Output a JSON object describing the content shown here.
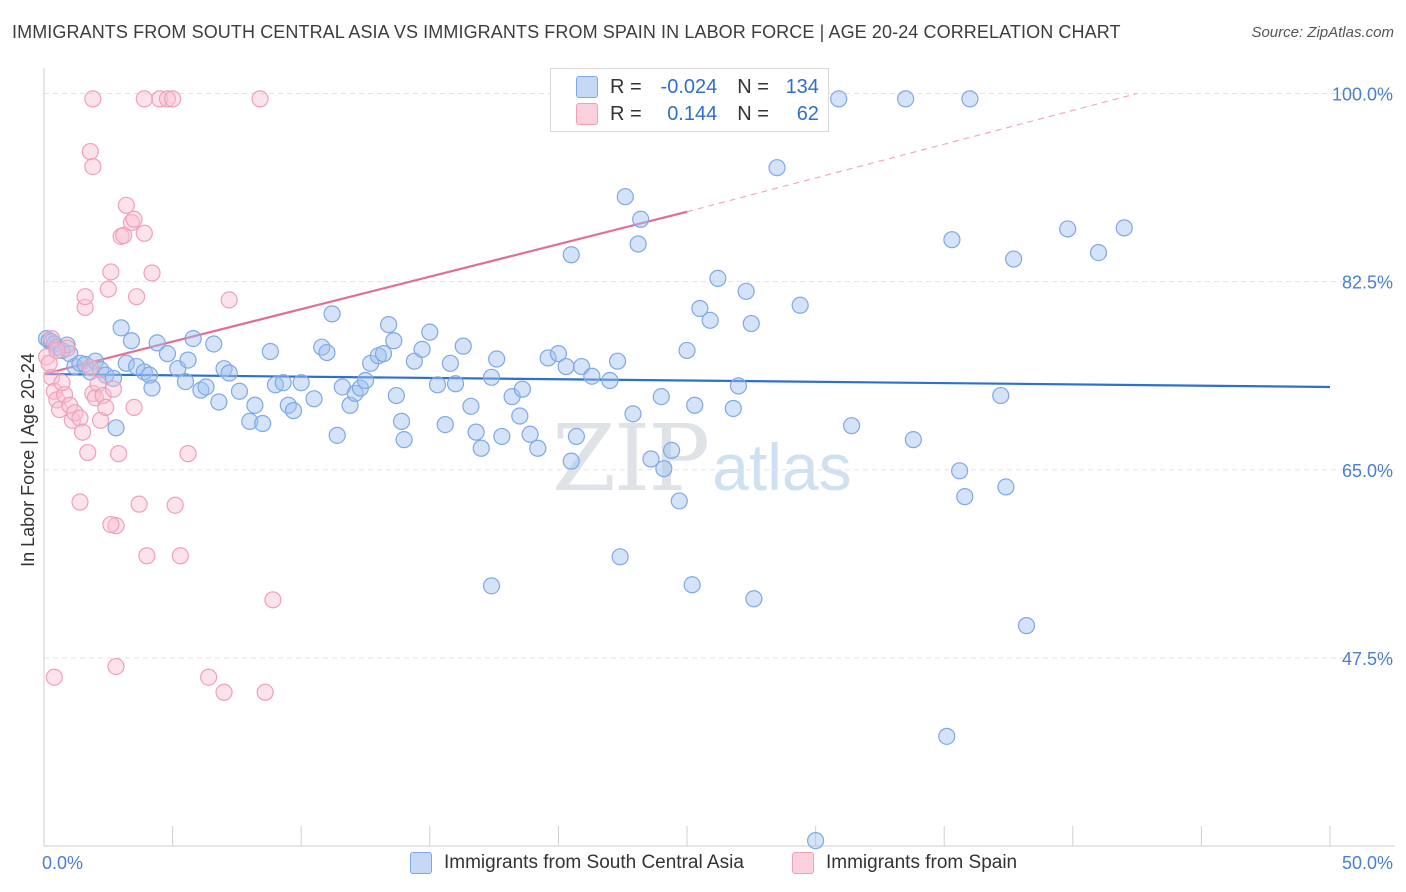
{
  "title": "IMMIGRANTS FROM SOUTH CENTRAL ASIA VS IMMIGRANTS FROM SPAIN IN LABOR FORCE | AGE 20-24 CORRELATION CHART",
  "source": "Source: ZipAtlas.com",
  "watermark": {
    "zip": "ZIP",
    "atlas": "atlas"
  },
  "legend": {
    "rows": [
      {
        "r_label": "R =",
        "r_value": "-0.024",
        "n_label": "N =",
        "n_value": "134"
      },
      {
        "r_label": "R =",
        "r_value": "0.144",
        "n_label": "N =",
        "n_value": "62"
      }
    ]
  },
  "bottom_legend": {
    "blue": "Immigrants from South Central Asia",
    "pink": "Immigrants from Spain"
  },
  "chart_data": {
    "type": "scatter",
    "title": "IMMIGRANTS FROM SOUTH CENTRAL ASIA VS IMMIGRANTS FROM SPAIN IN LABOR FORCE | AGE 20-24 CORRELATION CHART",
    "xlabel": "",
    "ylabel": "In Labor Force | Age 20-24",
    "xlim": [
      0,
      50
    ],
    "ylim": [
      30,
      102
    ],
    "x_tick_labels": [
      "0.0%",
      "50.0%"
    ],
    "y_ticks": [
      47.5,
      65.0,
      82.5,
      100.0
    ],
    "y_tick_labels": [
      "47.5%",
      "65.0%",
      "82.5%",
      "100.0%"
    ],
    "grid": true,
    "legend_position": "top-center",
    "colors": {
      "blue": "#7fa8e6",
      "blue_line": "#2e6fcf",
      "pink": "#f0a0b8",
      "pink_line": "#e0709a"
    },
    "series": [
      {
        "name": "Immigrants from South Central Asia",
        "color": "blue",
        "trend": {
          "x0": 0,
          "y0": 73.9,
          "x1": 50,
          "y1": 72.7
        },
        "points": [
          [
            0.1,
            77.2
          ],
          [
            0.2,
            77.0
          ],
          [
            0.3,
            76.9
          ],
          [
            0.4,
            76.7
          ],
          [
            0.5,
            76.4
          ],
          [
            0.7,
            76.1
          ],
          [
            0.9,
            76.6
          ],
          [
            1.0,
            75.8
          ],
          [
            1.2,
            74.6
          ],
          [
            1.4,
            74.9
          ],
          [
            1.6,
            74.8
          ],
          [
            1.8,
            74.1
          ],
          [
            2.0,
            75.1
          ],
          [
            2.2,
            74.3
          ],
          [
            2.4,
            73.8
          ],
          [
            2.7,
            73.5
          ],
          [
            2.8,
            68.9
          ],
          [
            3.0,
            78.2
          ],
          [
            3.2,
            74.9
          ],
          [
            3.4,
            77.0
          ],
          [
            3.6,
            74.6
          ],
          [
            3.9,
            74.1
          ],
          [
            4.1,
            73.8
          ],
          [
            4.4,
            76.8
          ],
          [
            4.2,
            72.6
          ],
          [
            4.8,
            75.8
          ],
          [
            5.2,
            74.4
          ],
          [
            5.5,
            73.2
          ],
          [
            5.6,
            75.2
          ],
          [
            5.8,
            77.2
          ],
          [
            6.1,
            72.4
          ],
          [
            6.3,
            72.7
          ],
          [
            6.6,
            76.7
          ],
          [
            6.8,
            71.3
          ],
          [
            7.0,
            74.4
          ],
          [
            7.2,
            74.0
          ],
          [
            7.6,
            72.3
          ],
          [
            8.0,
            69.5
          ],
          [
            8.2,
            71.0
          ],
          [
            8.5,
            69.3
          ],
          [
            8.8,
            76.0
          ],
          [
            9.0,
            72.9
          ],
          [
            9.3,
            73.1
          ],
          [
            9.5,
            71.0
          ],
          [
            9.7,
            70.5
          ],
          [
            10.0,
            73.1
          ],
          [
            10.5,
            71.6
          ],
          [
            10.8,
            76.4
          ],
          [
            11.0,
            75.9
          ],
          [
            11.2,
            79.5
          ],
          [
            11.4,
            68.2
          ],
          [
            11.6,
            72.7
          ],
          [
            11.9,
            71.0
          ],
          [
            12.1,
            72.1
          ],
          [
            12.3,
            72.6
          ],
          [
            12.5,
            73.3
          ],
          [
            12.7,
            74.9
          ],
          [
            13.0,
            75.6
          ],
          [
            13.2,
            75.8
          ],
          [
            13.4,
            78.5
          ],
          [
            13.6,
            77.0
          ],
          [
            13.7,
            71.9
          ],
          [
            14.0,
            67.8
          ],
          [
            14.4,
            75.1
          ],
          [
            14.7,
            76.2
          ],
          [
            15.0,
            77.8
          ],
          [
            15.3,
            72.9
          ],
          [
            15.6,
            69.2
          ],
          [
            15.8,
            74.9
          ],
          [
            16.3,
            76.5
          ],
          [
            16.6,
            70.9
          ],
          [
            16.8,
            68.5
          ],
          [
            17.0,
            67.0
          ],
          [
            17.4,
            73.6
          ],
          [
            17.6,
            75.3
          ],
          [
            17.8,
            68.1
          ],
          [
            18.2,
            71.8
          ],
          [
            18.6,
            72.5
          ],
          [
            18.9,
            68.3
          ],
          [
            19.2,
            67.0
          ],
          [
            19.6,
            75.4
          ],
          [
            20.0,
            75.8
          ],
          [
            20.3,
            74.6
          ],
          [
            20.5,
            65.8
          ],
          [
            20.7,
            68.1
          ],
          [
            20.9,
            74.6
          ],
          [
            21.3,
            73.7
          ],
          [
            22.0,
            73.3
          ],
          [
            22.3,
            75.1
          ],
          [
            22.6,
            90.4
          ],
          [
            22.9,
            70.2
          ],
          [
            23.1,
            86.0
          ],
          [
            23.2,
            88.3
          ],
          [
            23.6,
            66.0
          ],
          [
            24.1,
            65.1
          ],
          [
            24.4,
            66.8
          ],
          [
            24.7,
            62.1
          ],
          [
            25.0,
            76.1
          ],
          [
            25.3,
            71.0
          ],
          [
            25.5,
            80.0
          ],
          [
            25.9,
            78.9
          ],
          [
            26.2,
            82.8
          ],
          [
            26.8,
            70.7
          ],
          [
            27.0,
            72.8
          ],
          [
            27.3,
            81.6
          ],
          [
            27.5,
            78.6
          ],
          [
            28.5,
            93.1
          ],
          [
            29.4,
            80.3
          ],
          [
            30.9,
            99.5
          ],
          [
            31.4,
            69.1
          ],
          [
            33.5,
            99.5
          ],
          [
            33.8,
            67.8
          ],
          [
            35.3,
            86.4
          ],
          [
            35.6,
            64.9
          ],
          [
            35.8,
            62.5
          ],
          [
            36.0,
            99.5
          ],
          [
            37.2,
            71.9
          ],
          [
            37.4,
            63.4
          ],
          [
            37.7,
            84.6
          ],
          [
            38.2,
            50.5
          ],
          [
            39.8,
            87.4
          ],
          [
            41.0,
            85.2
          ],
          [
            42.0,
            87.5
          ],
          [
            22.4,
            56.9
          ],
          [
            17.4,
            54.2
          ],
          [
            25.2,
            54.3
          ],
          [
            27.6,
            53.0
          ],
          [
            35.1,
            40.2
          ],
          [
            20.5,
            85.0
          ],
          [
            18.5,
            70.0
          ],
          [
            16.0,
            73.0
          ],
          [
            30.0,
            30.5
          ],
          [
            13.9,
            69.5
          ],
          [
            24.0,
            71.8
          ]
        ]
      },
      {
        "name": "Immigrants from Spain",
        "color": "pink",
        "trend": {
          "x0": 0,
          "y0": 73.9,
          "x1": 25,
          "y1": 89.0,
          "dashed_to": {
            "x": 42.5,
            "y": 100
          }
        },
        "points": [
          [
            0.1,
            75.5
          ],
          [
            0.2,
            74.9
          ],
          [
            0.3,
            73.6
          ],
          [
            0.4,
            72.3
          ],
          [
            0.5,
            71.5
          ],
          [
            0.6,
            70.6
          ],
          [
            0.8,
            72.0
          ],
          [
            0.9,
            76.3
          ],
          [
            0.3,
            77.2
          ],
          [
            0.5,
            76.1
          ],
          [
            0.7,
            73.1
          ],
          [
            1.0,
            71.0
          ],
          [
            1.1,
            69.6
          ],
          [
            1.2,
            70.3
          ],
          [
            1.4,
            69.8
          ],
          [
            1.5,
            68.5
          ],
          [
            1.6,
            80.1
          ],
          [
            1.7,
            66.6
          ],
          [
            1.8,
            74.5
          ],
          [
            1.9,
            72.1
          ],
          [
            2.0,
            71.7
          ],
          [
            2.1,
            73.0
          ],
          [
            2.2,
            69.6
          ],
          [
            2.3,
            71.9
          ],
          [
            2.4,
            70.8
          ],
          [
            2.5,
            81.8
          ],
          [
            2.6,
            83.4
          ],
          [
            2.7,
            72.5
          ],
          [
            2.8,
            59.8
          ],
          [
            2.9,
            66.5
          ],
          [
            3.0,
            86.7
          ],
          [
            3.1,
            86.8
          ],
          [
            3.2,
            89.6
          ],
          [
            3.4,
            88.0
          ],
          [
            3.5,
            88.3
          ],
          [
            3.6,
            81.1
          ],
          [
            3.7,
            61.8
          ],
          [
            3.9,
            87.0
          ],
          [
            4.0,
            57.0
          ],
          [
            4.2,
            83.3
          ],
          [
            4.5,
            99.5
          ],
          [
            4.8,
            99.5
          ],
          [
            5.0,
            99.5
          ],
          [
            5.1,
            61.7
          ],
          [
            5.3,
            57.0
          ],
          [
            5.6,
            66.5
          ],
          [
            6.4,
            45.7
          ],
          [
            7.0,
            44.3
          ],
          [
            8.6,
            44.3
          ],
          [
            2.8,
            46.7
          ],
          [
            3.9,
            99.5
          ],
          [
            1.9,
            99.5
          ],
          [
            8.9,
            52.9
          ],
          [
            8.4,
            99.5
          ],
          [
            7.2,
            80.8
          ],
          [
            1.6,
            81.1
          ],
          [
            1.8,
            94.6
          ],
          [
            1.9,
            93.2
          ],
          [
            0.4,
            45.7
          ],
          [
            1.4,
            62.0
          ],
          [
            3.5,
            70.8
          ],
          [
            2.6,
            59.9
          ]
        ]
      }
    ]
  }
}
